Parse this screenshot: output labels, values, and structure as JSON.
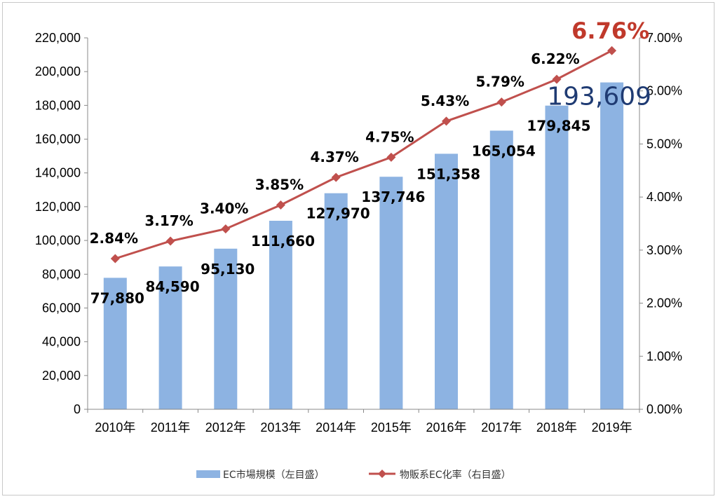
{
  "chart_data": {
    "type": "bar",
    "categories": [
      "2010年",
      "2011年",
      "2012年",
      "2013年",
      "2014年",
      "2015年",
      "2016年",
      "2017年",
      "2018年",
      "2019年"
    ],
    "series": [
      {
        "name": "EC市場規模（左目盛）",
        "type": "bar",
        "axis": "left",
        "values": [
          77880,
          84590,
          95130,
          111660,
          127970,
          137746,
          151358,
          165054,
          179845,
          193609
        ],
        "labels": [
          "77,880",
          "84,590",
          "95,130",
          "111,660",
          "127,970",
          "137,746",
          "151,358",
          "165,054",
          "179,845",
          "193,609"
        ]
      },
      {
        "name": "物販系EC化率（右目盛）",
        "type": "line",
        "axis": "right",
        "values": [
          2.84,
          3.17,
          3.4,
          3.85,
          4.37,
          4.75,
          5.43,
          5.79,
          6.22,
          6.76
        ],
        "labels": [
          "2.84%",
          "3.17%",
          "3.40%",
          "3.85%",
          "4.37%",
          "4.75%",
          "5.43%",
          "5.79%",
          "6.22%",
          "6.76%"
        ]
      }
    ],
    "y_left": {
      "range": [
        0,
        220000
      ],
      "ticks": [
        0,
        20000,
        40000,
        60000,
        80000,
        100000,
        120000,
        140000,
        160000,
        180000,
        200000,
        220000
      ],
      "tick_labels": [
        "0",
        "20,000",
        "40,000",
        "60,000",
        "80,000",
        "100,000",
        "120,000",
        "140,000",
        "160,000",
        "180,000",
        "200,000",
        "220,000"
      ]
    },
    "y_right": {
      "range": [
        0,
        7
      ],
      "ticks": [
        0,
        1,
        2,
        3,
        4,
        5,
        6,
        7
      ],
      "tick_labels": [
        "0.00%",
        "1.00%",
        "2.00%",
        "3.00%",
        "4.00%",
        "5.00%",
        "6.00%",
        "7.00%"
      ]
    },
    "title": "",
    "xlabel": "",
    "ylabel": "",
    "grid": false,
    "legend_position": "bottom",
    "highlight_index": 9,
    "colors": {
      "bar": "#8db3e2",
      "line": "#c0504d",
      "highlight_rate": "#c0392b",
      "highlight_value": "#1f3b73"
    }
  }
}
